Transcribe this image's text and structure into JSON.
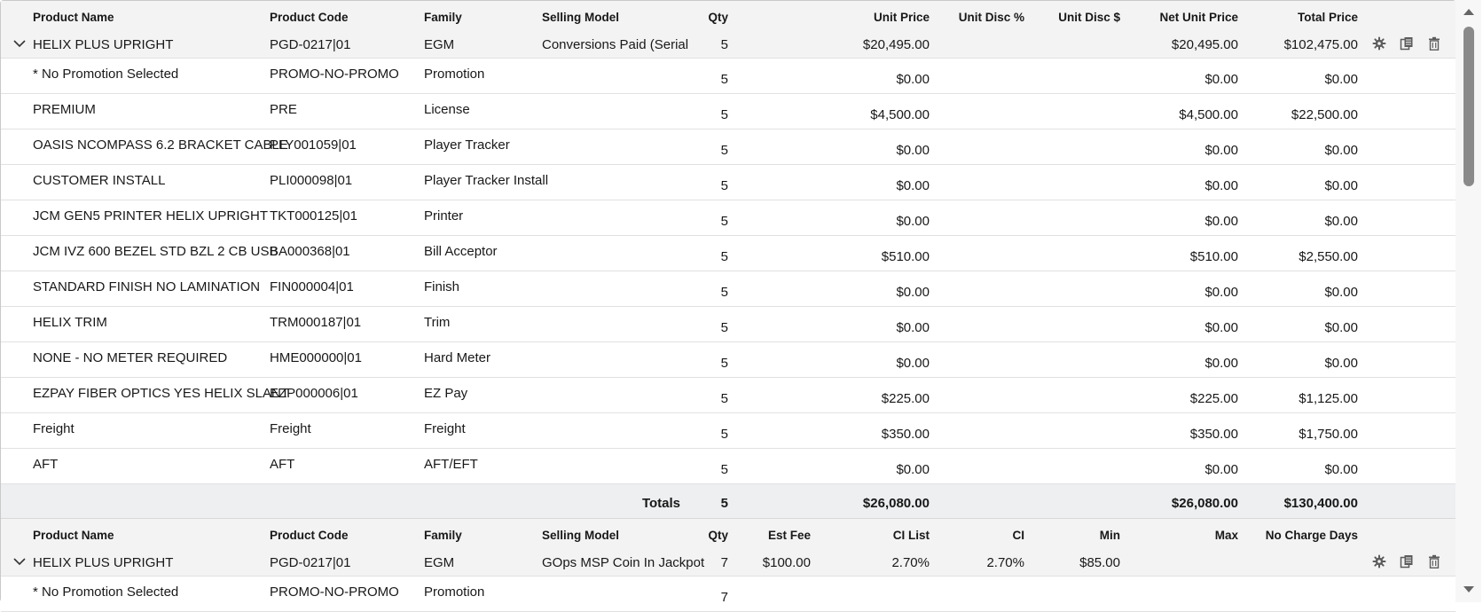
{
  "group1": {
    "columns": {
      "name": "Product Name",
      "code": "Product Code",
      "family": "Family",
      "model": "Selling Model",
      "qty": "Qty",
      "unit_price": "Unit Price",
      "unit_disc_pct": "Unit Disc %",
      "unit_disc_amt": "Unit Disc $",
      "net_unit_price": "Net Unit Price",
      "total_price": "Total Price"
    },
    "parent": {
      "name": "HELIX PLUS UPRIGHT",
      "code": "PGD-0217|01",
      "family": "EGM",
      "model": "Conversions Paid (Serial",
      "qty": "5",
      "unit_price": "$20,495.00",
      "unit_disc_pct": "",
      "unit_disc_amt": "",
      "net_unit_price": "$20,495.00",
      "total_price": "$102,475.00"
    },
    "rows": [
      {
        "name": "* No Promotion Selected",
        "code": "PROMO-NO-PROMO",
        "family": "Promotion",
        "qty": "5",
        "unit_price": "$0.00",
        "net_unit_price": "$0.00",
        "total_price": "$0.00"
      },
      {
        "name": "PREMIUM",
        "code": "PRE",
        "family": "License",
        "qty": "5",
        "unit_price": "$4,500.00",
        "net_unit_price": "$4,500.00",
        "total_price": "$22,500.00"
      },
      {
        "name": "OASIS NCOMPASS 6.2 BRACKET CABLE",
        "code": "PLY001059|01",
        "family": "Player Tracker",
        "qty": "5",
        "unit_price": "$0.00",
        "net_unit_price": "$0.00",
        "total_price": "$0.00"
      },
      {
        "name": "CUSTOMER INSTALL",
        "code": "PLI000098|01",
        "family": "Player Tracker Install",
        "qty": "5",
        "unit_price": "$0.00",
        "net_unit_price": "$0.00",
        "total_price": "$0.00"
      },
      {
        "name": "JCM GEN5 PRINTER HELIX UPRIGHT",
        "code": "TKT000125|01",
        "family": "Printer",
        "qty": "5",
        "unit_price": "$0.00",
        "net_unit_price": "$0.00",
        "total_price": "$0.00"
      },
      {
        "name": "JCM IVZ 600 BEZEL STD BZL 2 CB USB",
        "code": "BA000368|01",
        "family": "Bill Acceptor",
        "qty": "5",
        "unit_price": "$510.00",
        "net_unit_price": "$510.00",
        "total_price": "$2,550.00"
      },
      {
        "name": "STANDARD FINISH NO LAMINATION",
        "code": "FIN000004|01",
        "family": "Finish",
        "qty": "5",
        "unit_price": "$0.00",
        "net_unit_price": "$0.00",
        "total_price": "$0.00"
      },
      {
        "name": "HELIX TRIM",
        "code": "TRM000187|01",
        "family": "Trim",
        "qty": "5",
        "unit_price": "$0.00",
        "net_unit_price": "$0.00",
        "total_price": "$0.00"
      },
      {
        "name": "NONE - NO METER REQUIRED",
        "code": "HME000000|01",
        "family": "Hard Meter",
        "qty": "5",
        "unit_price": "$0.00",
        "net_unit_price": "$0.00",
        "total_price": "$0.00"
      },
      {
        "name": "EZPAY FIBER OPTICS YES HELIX SLANT",
        "code": "EZP000006|01",
        "family": "EZ Pay",
        "qty": "5",
        "unit_price": "$225.00",
        "net_unit_price": "$225.00",
        "total_price": "$1,125.00"
      },
      {
        "name": "Freight",
        "code": "Freight",
        "family": "Freight",
        "qty": "5",
        "unit_price": "$350.00",
        "net_unit_price": "$350.00",
        "total_price": "$1,750.00"
      },
      {
        "name": "AFT",
        "code": "AFT",
        "family": "AFT/EFT",
        "qty": "5",
        "unit_price": "$0.00",
        "net_unit_price": "$0.00",
        "total_price": "$0.00"
      }
    ],
    "totals": {
      "label": "Totals",
      "qty": "5",
      "unit_price": "$26,080.00",
      "net_unit_price": "$26,080.00",
      "total_price": "$130,400.00"
    }
  },
  "group2": {
    "columns": {
      "name": "Product Name",
      "code": "Product Code",
      "family": "Family",
      "model": "Selling Model",
      "qty": "Qty",
      "est_fee": "Est Fee",
      "ci_list": "CI List",
      "ci": "CI",
      "min": "Min",
      "max": "Max",
      "no_charge_days": "No Charge Days"
    },
    "parent": {
      "name": "HELIX PLUS UPRIGHT",
      "code": "PGD-0217|01",
      "family": "EGM",
      "model": "GOps MSP Coin In Jackpot",
      "qty": "7",
      "est_fee": "$100.00",
      "ci_list": "2.70%",
      "ci": "2.70%",
      "min": "$85.00",
      "max": "",
      "no_charge_days": ""
    },
    "rows": [
      {
        "name": "* No Promotion Selected",
        "code": "PROMO-NO-PROMO",
        "family": "Promotion",
        "qty": "7"
      }
    ]
  },
  "icons": {
    "expand": "chevron-down-icon",
    "configure": "gear-icon",
    "clone": "copy-icon",
    "delete": "trash-icon",
    "scroll_up": "triangle-up-icon",
    "scroll_down": "triangle-down-icon"
  },
  "colors": {
    "header_bg": "#f3f3f3",
    "row_bg": "#ffffff",
    "totals_bg": "#edeff1",
    "border": "#e1e1e1",
    "icon": "#5c5c5c"
  }
}
